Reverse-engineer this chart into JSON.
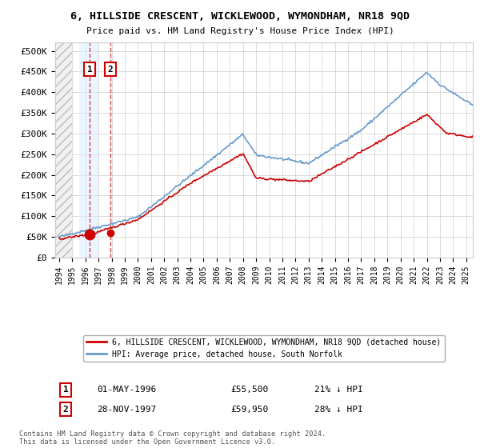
{
  "title": "6, HILLSIDE CRESCENT, WICKLEWOOD, WYMONDHAM, NR18 9QD",
  "subtitle": "Price paid vs. HM Land Registry's House Price Index (HPI)",
  "ylabel_ticks": [
    "£0",
    "£50K",
    "£100K",
    "£150K",
    "£200K",
    "£250K",
    "£300K",
    "£350K",
    "£400K",
    "£450K",
    "£500K"
  ],
  "ytick_values": [
    0,
    50000,
    100000,
    150000,
    200000,
    250000,
    300000,
    350000,
    400000,
    450000,
    500000
  ],
  "xlim_start": 1993.7,
  "xlim_end": 2025.5,
  "ylim": [
    0,
    520000
  ],
  "legend_line1": "6, HILLSIDE CRESCENT, WICKLEWOOD, WYMONDHAM, NR18 9QD (detached house)",
  "legend_line2": "HPI: Average price, detached house, South Norfolk",
  "sale1_label": "1",
  "sale1_date": "01-MAY-1996",
  "sale1_price": "£55,500",
  "sale1_hpi": "21% ↓ HPI",
  "sale1_x": 1996.33,
  "sale1_y": 55500,
  "sale2_label": "2",
  "sale2_date": "28-NOV-1997",
  "sale2_price": "£59,950",
  "sale2_hpi": "28% ↓ HPI",
  "sale2_x": 1997.9,
  "sale2_y": 59950,
  "hpi_color": "#6699cc",
  "sale_color": "#cc0000",
  "sale_highlight_color": "#ddeeff",
  "footer_text": "Contains HM Land Registry data © Crown copyright and database right 2024.\nThis data is licensed under the Open Government Licence v3.0."
}
